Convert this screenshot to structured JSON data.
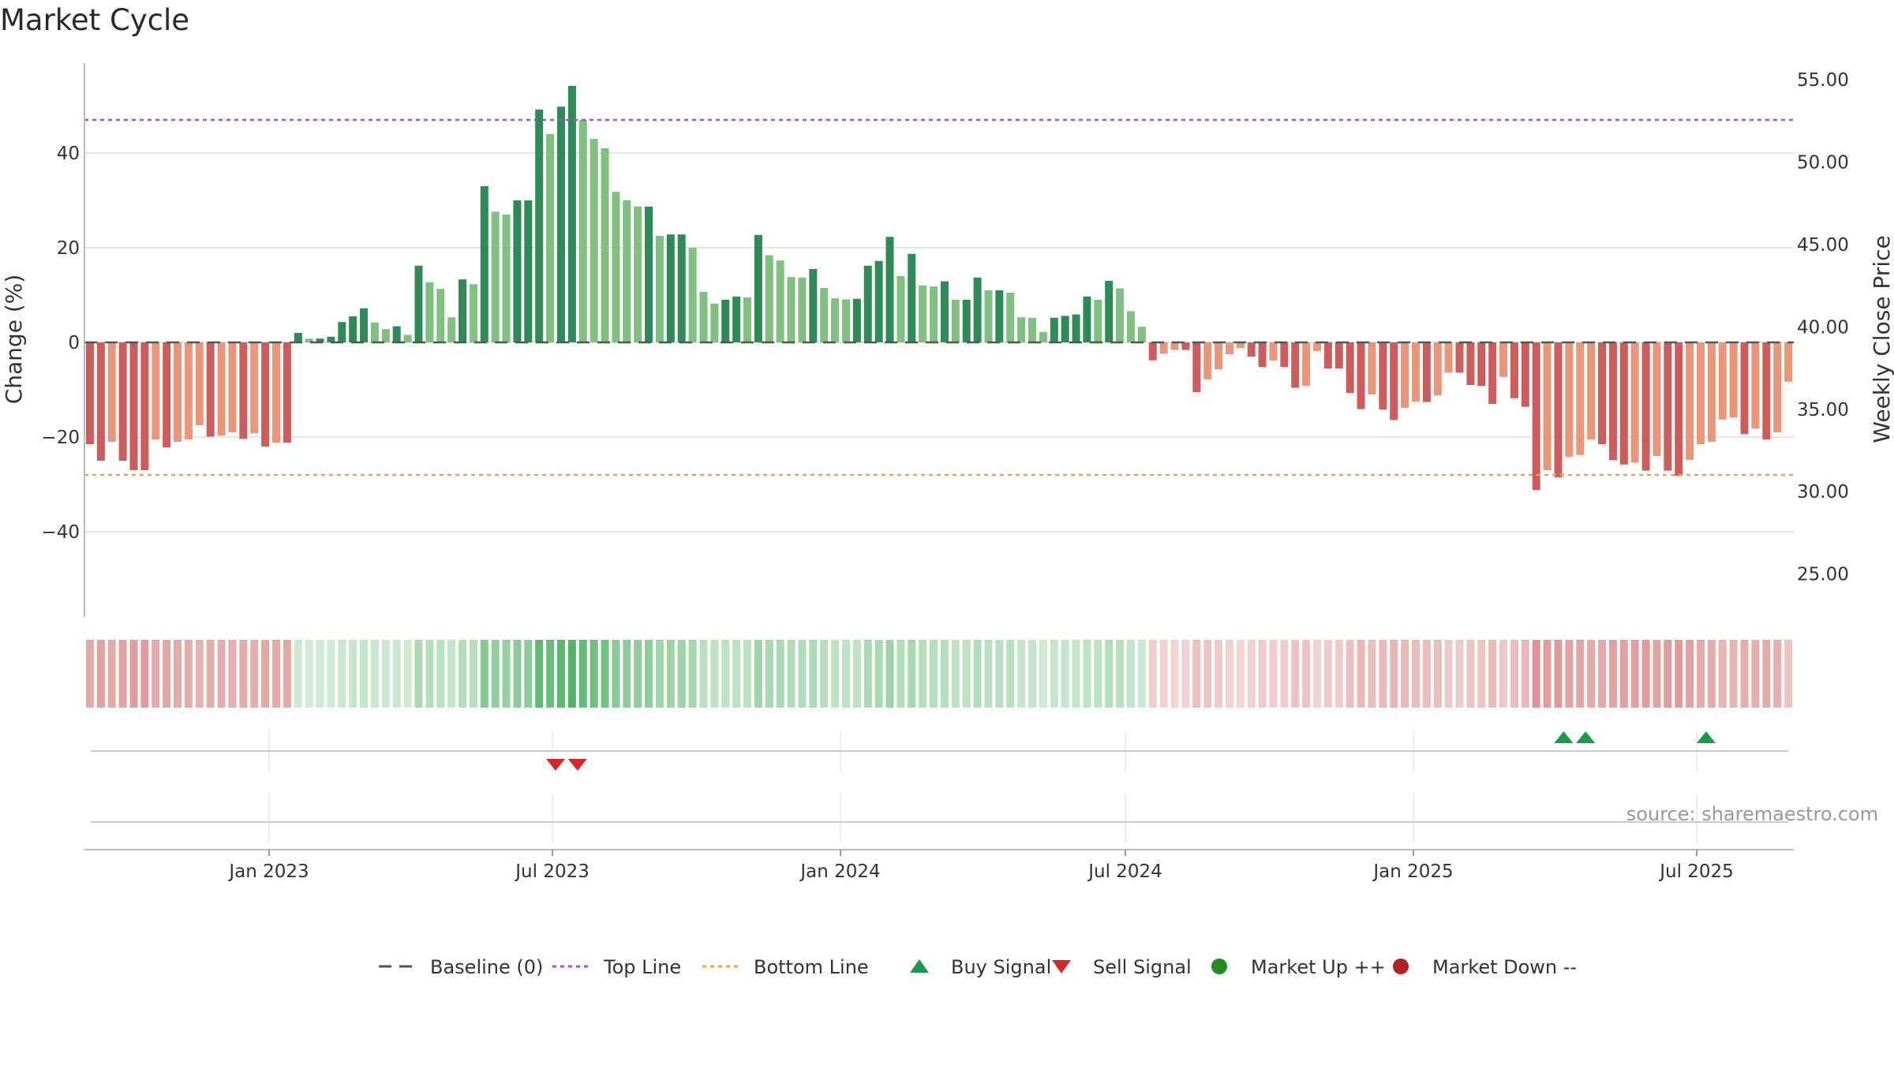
{
  "chart_data": {
    "type": "bar",
    "title": "Market Cycle",
    "ylabel_left": "Change (%)",
    "ylabel_right": "Weekly Close Price",
    "ylim_left": [
      -58,
      59
    ],
    "ylim_right": [
      22.4,
      56.0
    ],
    "yticks_left": [
      -40,
      -20,
      0,
      20,
      40
    ],
    "ytick_labels_left": [
      "−40",
      "−20",
      "0",
      "20",
      "40"
    ],
    "yticks_right": [
      25,
      30,
      35,
      40,
      45,
      50,
      55
    ],
    "ytick_labels_right": [
      "25.00",
      "30.00",
      "35.00",
      "40.00",
      "45.00",
      "50.00",
      "55.00"
    ],
    "x_start": "2022-09-05",
    "x_end": "2025-09-01",
    "xticks": [
      "2023-01-01",
      "2023-07-01",
      "2024-01-01",
      "2024-07-01",
      "2025-01-01",
      "2025-07-01"
    ],
    "xtick_labels": [
      "Jan 2023",
      "Jul 2023",
      "Jan 2024",
      "Jul 2024",
      "Jan 2025",
      "Jul 2025"
    ],
    "top_line": 47,
    "bottom_line": -28,
    "baseline": 0,
    "bar_interval_days": 7,
    "values": [
      -21.5,
      -25,
      -21,
      -25,
      -27,
      -27,
      -20.5,
      -22.2,
      -21,
      -20.5,
      -17.5,
      -19.9,
      -19.7,
      -19,
      -20.4,
      -19.2,
      -22,
      -21.2,
      -21.2,
      2,
      0.8,
      0.8,
      1.2,
      4.3,
      5.5,
      7.2,
      4.2,
      2.8,
      3.4,
      1.6,
      16.2,
      12.7,
      11.3,
      5.3,
      13.3,
      12.3,
      33,
      27.6,
      27,
      30,
      30,
      49.2,
      44,
      49.8,
      54.2,
      47,
      43,
      41,
      31.8,
      30,
      28.7,
      28.7,
      22.5,
      22.8,
      22.8,
      20,
      10.7,
      8.2,
      9,
      9.7,
      9.5,
      22.7,
      18.4,
      17.3,
      13.8,
      13.7,
      15.5,
      11.5,
      9.3,
      9.1,
      9.2,
      16.2,
      17.2,
      22.3,
      14,
      18.7,
      12,
      11.8,
      12.9,
      9,
      9,
      13.7,
      11,
      11,
      10.5,
      5.3,
      5.2,
      2.2,
      5.2,
      5.6,
      5.9,
      9.7,
      9,
      13,
      11.4,
      6.6,
      3.3,
      -3.8,
      -2.4,
      -1.6,
      -1.6,
      -10.5,
      -7.8,
      -5.7,
      -2.5,
      -1.2,
      -3,
      -5.2,
      -3.8,
      -5.2,
      -9.6,
      -9.2,
      -1.8,
      -5.5,
      -5.5,
      -10.7,
      -14.1,
      -11,
      -14.2,
      -16.4,
      -13.8,
      -12.5,
      -12.6,
      -11.2,
      -6.4,
      -6.4,
      -9,
      -9.2,
      -13,
      -7.3,
      -11.8,
      -13.6,
      -31.2,
      -27,
      -28.5,
      -24.2,
      -23.8,
      -20.5,
      -21.5,
      -24.9,
      -25.8,
      -25.4,
      -27.1,
      -24,
      -27.1,
      -28.2,
      -24.8,
      -21.5,
      -21,
      -16.3,
      -15.9,
      -19.4,
      -18.2,
      -20.5,
      -19,
      -8.3
    ],
    "bar_colors": {
      "strong_up": "#2e8b57",
      "weak_up": "#80c080",
      "strong_down": "#cd5c5c",
      "weak_down": "#e9967a"
    },
    "buy_signals": [
      "2025-04-07",
      "2025-04-21",
      "2025-07-07"
    ],
    "sell_signals": [
      "2023-07-03",
      "2023-07-17"
    ],
    "market_up_points": [],
    "market_down_points": [],
    "heat_strip_colors": {
      "up": "#4caf60",
      "down": "#cd5c5c"
    },
    "legend": [
      {
        "label": "Baseline (0)",
        "symbol": "dash",
        "color": "#555555"
      },
      {
        "label": "Top Line",
        "symbol": "dot-line",
        "color": "#9b59b6"
      },
      {
        "label": "Bottom Line",
        "symbol": "dot-line",
        "color": "#f0a050"
      },
      {
        "label": "Buy Signal",
        "symbol": "triangle-up",
        "color": "#1a9a4a"
      },
      {
        "label": "Sell Signal",
        "symbol": "triangle-down",
        "color": "#d62728"
      },
      {
        "label": "Market Up ++",
        "symbol": "circle",
        "color": "#228b22"
      },
      {
        "label": "Market Down --",
        "symbol": "circle",
        "color": "#b22222"
      }
    ],
    "source": "source: sharemaestro.com",
    "grid": true,
    "legend_position": "bottom"
  }
}
